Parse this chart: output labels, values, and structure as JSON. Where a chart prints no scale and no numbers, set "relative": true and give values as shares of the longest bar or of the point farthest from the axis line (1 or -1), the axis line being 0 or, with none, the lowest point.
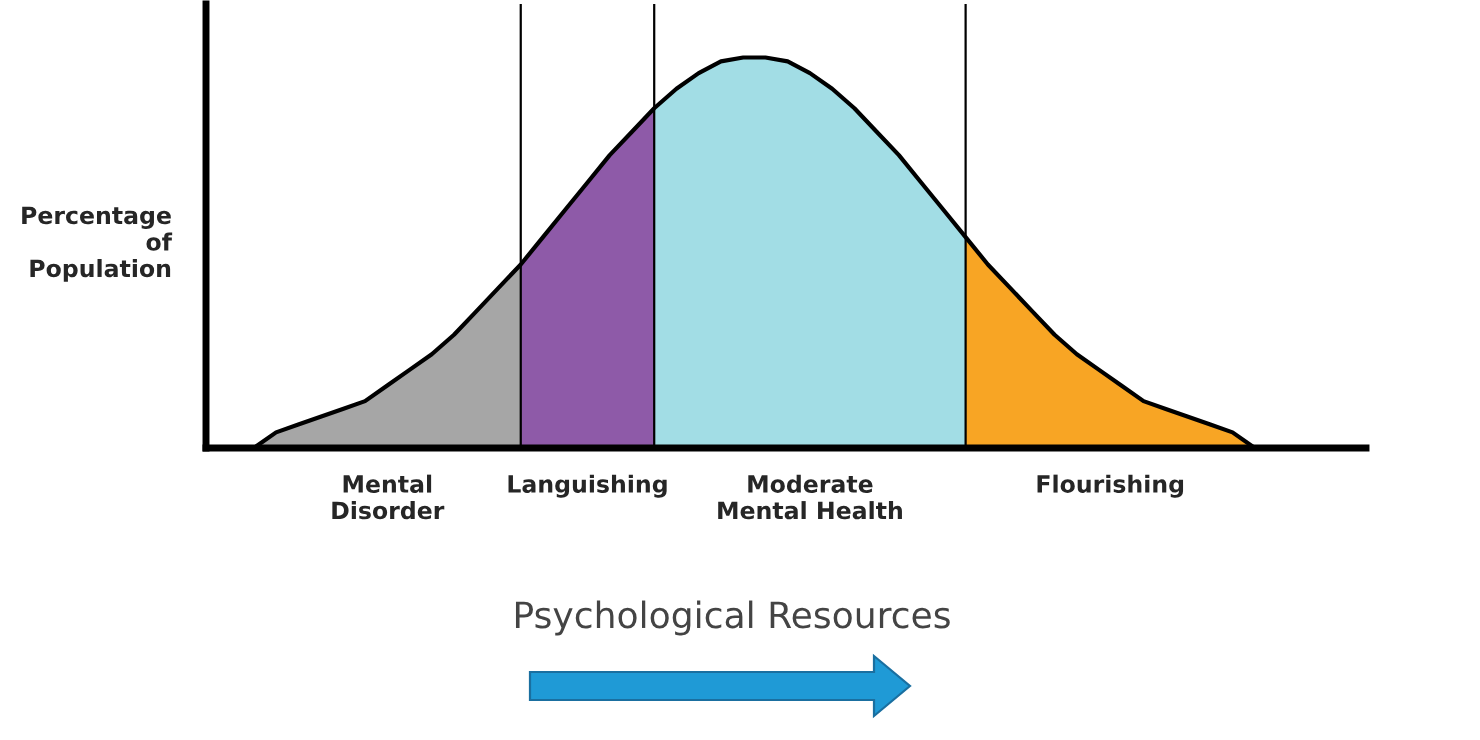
{
  "chart_data": {
    "type": "area",
    "relative": true,
    "ylabel": "Percentage\nof\nPopulation",
    "categories": [
      null,
      null,
      null,
      null,
      null,
      null,
      null,
      null,
      null,
      null,
      null,
      null,
      null,
      null,
      null,
      null,
      null,
      null,
      null,
      null,
      null,
      null,
      null,
      null,
      null,
      null,
      null,
      null,
      null,
      null,
      null,
      null,
      null,
      null,
      null,
      null,
      null,
      null,
      null,
      null,
      null,
      null,
      null,
      null,
      null,
      null,
      null,
      null,
      null,
      null,
      null,
      null,
      null
    ],
    "series": [
      {
        "name": "Mental\nDisorder",
        "color": "#a6a6a6",
        "values": [
          null,
          null,
          0,
          0.04,
          0.06,
          0.08,
          0.1,
          0.12,
          0.16,
          0.2,
          0.24,
          0.29,
          0.35,
          0.41,
          0.47,
          null,
          null,
          null,
          null,
          null,
          null,
          null,
          null,
          null,
          null,
          null,
          null,
          null,
          null,
          null,
          null,
          null,
          null,
          null,
          null,
          null,
          null,
          null,
          null,
          null,
          null,
          null,
          null,
          null,
          null,
          null,
          null,
          null,
          null,
          null,
          null,
          null,
          null
        ]
      },
      {
        "name": "Languishing",
        "color": "#8e5aa8",
        "values": [
          null,
          null,
          null,
          null,
          null,
          null,
          null,
          null,
          null,
          null,
          null,
          null,
          null,
          null,
          0.47,
          0.54,
          0.61,
          0.68,
          0.75,
          0.81,
          0.87,
          null,
          null,
          null,
          null,
          null,
          null,
          null,
          null,
          null,
          null,
          null,
          null,
          null,
          null,
          null,
          null,
          null,
          null,
          null,
          null,
          null,
          null,
          null,
          null,
          null,
          null,
          null,
          null,
          null,
          null,
          null,
          null
        ]
      },
      {
        "name": "Moderate\nMental Health",
        "color": "#a2dde5",
        "values": [
          null,
          null,
          null,
          null,
          null,
          null,
          null,
          null,
          null,
          null,
          null,
          null,
          null,
          null,
          null,
          null,
          null,
          null,
          null,
          null,
          0.87,
          0.92,
          0.96,
          0.99,
          1.0,
          1.0,
          0.99,
          0.96,
          0.92,
          0.87,
          0.81,
          0.75,
          0.68,
          0.61,
          0.54,
          null,
          null,
          null,
          null,
          null,
          null,
          null,
          null,
          null,
          null,
          null,
          null,
          null,
          null,
          null,
          null,
          null,
          null
        ]
      },
      {
        "name": "Flourishing",
        "color": "#f8a524",
        "values": [
          null,
          null,
          null,
          null,
          null,
          null,
          null,
          null,
          null,
          null,
          null,
          null,
          null,
          null,
          null,
          null,
          null,
          null,
          null,
          null,
          null,
          null,
          null,
          null,
          null,
          null,
          null,
          null,
          null,
          null,
          null,
          null,
          null,
          null,
          0.54,
          0.47,
          0.41,
          0.35,
          0.29,
          0.24,
          0.2,
          0.16,
          0.12,
          0.1,
          0.08,
          0.06,
          0.04,
          0,
          null,
          null,
          null,
          null,
          null
        ]
      },
      {
        "type": "line",
        "color": "#000000",
        "values": [
          null,
          null,
          0,
          0.04,
          0.06,
          0.08,
          0.1,
          0.12,
          0.16,
          0.2,
          0.24,
          0.29,
          0.35,
          0.41,
          0.47,
          0.54,
          0.61,
          0.68,
          0.75,
          0.81,
          0.87,
          0.92,
          0.96,
          0.99,
          1.0,
          1.0,
          0.99,
          0.96,
          0.92,
          0.87,
          0.81,
          0.75,
          0.68,
          0.61,
          0.54,
          0.47,
          0.41,
          0.35,
          0.29,
          0.24,
          0.2,
          0.16,
          0.12,
          0.1,
          0.08,
          0.06,
          0.04,
          0,
          null,
          null,
          null,
          null,
          null
        ]
      }
    ],
    "annotations": [
      "Psychological Resources"
    ],
    "grid": "x"
  }
}
